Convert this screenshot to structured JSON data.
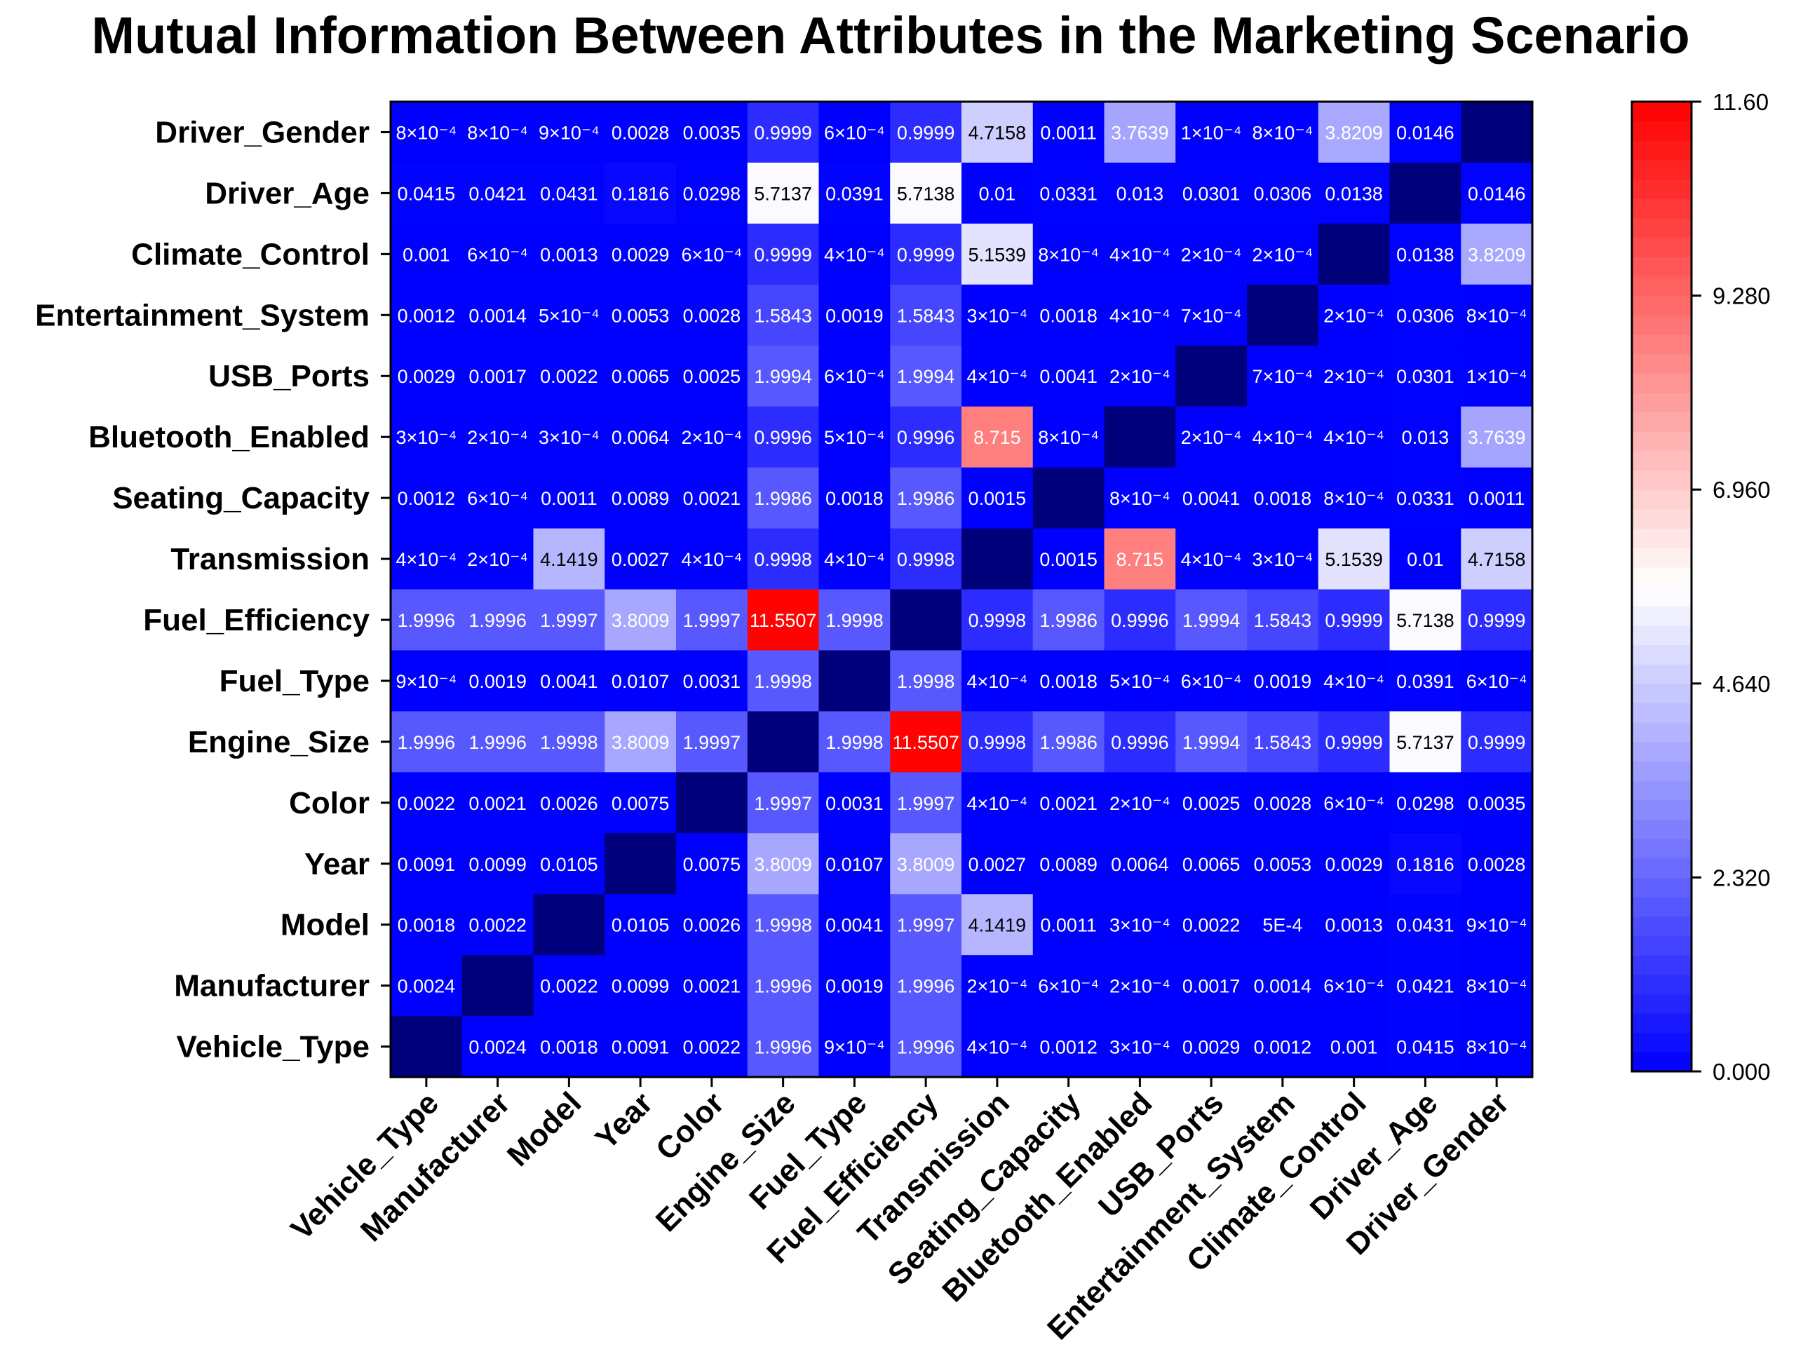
{
  "chart_data": {
    "type": "heatmap",
    "title": "Mutual Information Between Attributes in the Marketing Scenario",
    "xlabel": "",
    "ylabel": "",
    "x_categories": [
      "Vehicle_Type",
      "Manufacturer",
      "Model",
      "Year",
      "Color",
      "Engine_Size",
      "Fuel_Type",
      "Fuel_Efficiency",
      "Transmission",
      "Seating_Capacity",
      "Bluetooth_Enabled",
      "USB_Ports",
      "Entertainment_System",
      "Climate_Control",
      "Driver_Age",
      "Driver_Gender"
    ],
    "y_categories_top_to_bottom": [
      "Driver_Gender",
      "Driver_Age",
      "Climate_Control",
      "Entertainment_System",
      "USB_Ports",
      "Bluetooth_Enabled",
      "Seating_Capacity",
      "Transmission",
      "Fuel_Efficiency",
      "Fuel_Type",
      "Engine_Size",
      "Color",
      "Year",
      "Model",
      "Manufacturer",
      "Vehicle_Type"
    ],
    "values": [
      [
        0.0008,
        0.0008,
        0.0009,
        0.0028,
        0.0035,
        0.9999,
        0.0006,
        0.9999,
        4.7158,
        0.0011,
        3.7639,
        0.0001,
        0.0008,
        3.8209,
        0.0146,
        0
      ],
      [
        0.0415,
        0.0421,
        0.0431,
        0.1816,
        0.0298,
        5.7137,
        0.0391,
        5.7138,
        0.01,
        0.0331,
        0.013,
        0.0301,
        0.0306,
        0.0138,
        0,
        0.0146
      ],
      [
        0.001,
        0.0006,
        0.0013,
        0.0029,
        0.0006,
        0.9999,
        0.0004,
        0.9999,
        5.1539,
        0.0008,
        0.0004,
        0.0002,
        0.0002,
        0,
        0.0138,
        3.8209
      ],
      [
        0.0012,
        0.0014,
        0.0005,
        0.0053,
        0.0028,
        1.5843,
        0.0019,
        1.5843,
        0.0003,
        0.0018,
        0.0004,
        0.0007,
        0,
        0.0002,
        0.0306,
        0.0008
      ],
      [
        0.0029,
        0.0017,
        0.0022,
        0.0065,
        0.0025,
        1.9994,
        0.0006,
        1.9994,
        0.0004,
        0.0041,
        0.0002,
        0,
        0.0007,
        0.0002,
        0.0301,
        0.0001
      ],
      [
        0.0003,
        0.0002,
        0.0003,
        0.0064,
        0.0002,
        0.9996,
        0.0005,
        0.9996,
        8.715,
        0.0008,
        0,
        0.0002,
        0.0004,
        0.0004,
        0.013,
        3.7639
      ],
      [
        0.0012,
        0.0006,
        0.0011,
        0.0089,
        0.0021,
        1.9986,
        0.0018,
        1.9986,
        0.0015,
        0,
        0.0008,
        0.0041,
        0.0018,
        0.0008,
        0.0331,
        0.0011
      ],
      [
        0.0004,
        0.0002,
        4.1419,
        0.0027,
        0.0004,
        0.9998,
        0.0004,
        0.9998,
        0,
        0.0015,
        8.715,
        0.0004,
        0.0003,
        5.1539,
        0.01,
        4.7158
      ],
      [
        1.9996,
        1.9996,
        1.9997,
        3.8009,
        1.9997,
        11.5507,
        1.9998,
        0,
        0.9998,
        1.9986,
        0.9996,
        1.9994,
        1.5843,
        0.9999,
        5.7138,
        0.9999
      ],
      [
        0.0009,
        0.0019,
        0.0041,
        0.0107,
        0.0031,
        1.9998,
        0,
        1.9998,
        0.0004,
        0.0018,
        0.0005,
        0.0006,
        0.0019,
        0.0004,
        0.0391,
        0.0006
      ],
      [
        1.9996,
        1.9996,
        1.9998,
        3.8009,
        1.9997,
        0,
        1.9998,
        11.5507,
        0.9998,
        1.9986,
        0.9996,
        1.9994,
        1.5843,
        0.9999,
        5.7137,
        0.9999
      ],
      [
        0.0022,
        0.0021,
        0.0026,
        0.0075,
        0,
        1.9997,
        0.0031,
        1.9997,
        0.0004,
        0.0021,
        0.0002,
        0.0025,
        0.0028,
        0.0006,
        0.0298,
        0.0035
      ],
      [
        0.0091,
        0.0099,
        0.0105,
        0,
        0.0075,
        3.8009,
        0.0107,
        3.8009,
        0.0027,
        0.0089,
        0.0064,
        0.0065,
        0.0053,
        0.0029,
        0.1816,
        0.0028
      ],
      [
        0.0018,
        0.0022,
        0,
        0.0105,
        0.0026,
        1.9998,
        0.0041,
        1.9997,
        4.1419,
        0.0011,
        0.0003,
        0.0022,
        0.0005,
        0.0013,
        0.0431,
        0.0009
      ],
      [
        0.0024,
        0,
        0.0022,
        0.0099,
        0.0021,
        1.9996,
        0.0019,
        1.9996,
        0.0002,
        0.0006,
        0.0002,
        0.0017,
        0.0014,
        0.0006,
        0.0421,
        0.0008
      ],
      [
        0,
        0.0024,
        0.0018,
        0.0091,
        0.0022,
        1.9996,
        0.0009,
        1.9996,
        0.0004,
        0.0012,
        0.0003,
        0.0029,
        0.0012,
        0.001,
        0.0415,
        0.0008
      ]
    ],
    "labels": [
      [
        "8×10⁻⁴",
        "8×10⁻⁴",
        "9×10⁻⁴",
        "0.0028",
        "0.0035",
        "0.9999",
        "6×10⁻⁴",
        "0.9999",
        "4.7158",
        "0.0011",
        "3.7639",
        "1×10⁻⁴",
        "8×10⁻⁴",
        "3.8209",
        "0.0146",
        ""
      ],
      [
        "0.0415",
        "0.0421",
        "0.0431",
        "0.1816",
        "0.0298",
        "5.7137",
        "0.0391",
        "5.7138",
        "0.01",
        "0.0331",
        "0.013",
        "0.0301",
        "0.0306",
        "0.0138",
        "",
        "0.0146"
      ],
      [
        "0.001",
        "6×10⁻⁴",
        "0.0013",
        "0.0029",
        "6×10⁻⁴",
        "0.9999",
        "4×10⁻⁴",
        "0.9999",
        "5.1539",
        "8×10⁻⁴",
        "4×10⁻⁴",
        "2×10⁻⁴",
        "2×10⁻⁴",
        "",
        "0.0138",
        "3.8209"
      ],
      [
        "0.0012",
        "0.0014",
        "5×10⁻⁴",
        "0.0053",
        "0.0028",
        "1.5843",
        "0.0019",
        "1.5843",
        "3×10⁻⁴",
        "0.0018",
        "4×10⁻⁴",
        "7×10⁻⁴",
        "",
        "2×10⁻⁴",
        "0.0306",
        "8×10⁻⁴"
      ],
      [
        "0.0029",
        "0.0017",
        "0.0022",
        "0.0065",
        "0.0025",
        "1.9994",
        "6×10⁻⁴",
        "1.9994",
        "4×10⁻⁴",
        "0.0041",
        "2×10⁻⁴",
        "",
        "7×10⁻⁴",
        "2×10⁻⁴",
        "0.0301",
        "1×10⁻⁴"
      ],
      [
        "3×10⁻⁴",
        "2×10⁻⁴",
        "3×10⁻⁴",
        "0.0064",
        "2×10⁻⁴",
        "0.9996",
        "5×10⁻⁴",
        "0.9996",
        "8.715",
        "8×10⁻⁴",
        "",
        "2×10⁻⁴",
        "4×10⁻⁴",
        "4×10⁻⁴",
        "0.013",
        "3.7639"
      ],
      [
        "0.0012",
        "6×10⁻⁴",
        "0.0011",
        "0.0089",
        "0.0021",
        "1.9986",
        "0.0018",
        "1.9986",
        "0.0015",
        "",
        "8×10⁻⁴",
        "0.0041",
        "0.0018",
        "8×10⁻⁴",
        "0.0331",
        "0.0011"
      ],
      [
        "4×10⁻⁴",
        "2×10⁻⁴",
        "4.1419",
        "0.0027",
        "4×10⁻⁴",
        "0.9998",
        "4×10⁻⁴",
        "0.9998",
        "",
        "0.0015",
        "8.715",
        "4×10⁻⁴",
        "3×10⁻⁴",
        "5.1539",
        "0.01",
        "4.7158"
      ],
      [
        "1.9996",
        "1.9996",
        "1.9997",
        "3.8009",
        "1.9997",
        "11.5507",
        "1.9998",
        "",
        "0.9998",
        "1.9986",
        "0.9996",
        "1.9994",
        "1.5843",
        "0.9999",
        "5.7138",
        "0.9999"
      ],
      [
        "9×10⁻⁴",
        "0.0019",
        "0.0041",
        "0.0107",
        "0.0031",
        "1.9998",
        "",
        "1.9998",
        "4×10⁻⁴",
        "0.0018",
        "5×10⁻⁴",
        "6×10⁻⁴",
        "0.0019",
        "4×10⁻⁴",
        "0.0391",
        "6×10⁻⁴"
      ],
      [
        "1.9996",
        "1.9996",
        "1.9998",
        "3.8009",
        "1.9997",
        "",
        "1.9998",
        "11.5507",
        "0.9998",
        "1.9986",
        "0.9996",
        "1.9994",
        "1.5843",
        "0.9999",
        "5.7137",
        "0.9999"
      ],
      [
        "0.0022",
        "0.0021",
        "0.0026",
        "0.0075",
        "",
        "1.9997",
        "0.0031",
        "1.9997",
        "4×10⁻⁴",
        "0.0021",
        "2×10⁻⁴",
        "0.0025",
        "0.0028",
        "6×10⁻⁴",
        "0.0298",
        "0.0035"
      ],
      [
        "0.0091",
        "0.0099",
        "0.0105",
        "",
        "0.0075",
        "3.8009",
        "0.0107",
        "3.8009",
        "0.0027",
        "0.0089",
        "0.0064",
        "0.0065",
        "0.0053",
        "0.0029",
        "0.1816",
        "0.0028"
      ],
      [
        "0.0018",
        "0.0022",
        "",
        "0.0105",
        "0.0026",
        "1.9998",
        "0.0041",
        "1.9997",
        "4.1419",
        "0.0011",
        "3×10⁻⁴",
        "0.0022",
        "5E-4",
        "0.0013",
        "0.0431",
        "9×10⁻⁴"
      ],
      [
        "0.0024",
        "",
        "0.0022",
        "0.0099",
        "0.0021",
        "1.9996",
        "0.0019",
        "1.9996",
        "2×10⁻⁴",
        "6×10⁻⁴",
        "2×10⁻⁴",
        "0.0017",
        "0.0014",
        "6×10⁻⁴",
        "0.0421",
        "8×10⁻⁴"
      ],
      [
        "",
        "0.0024",
        "0.0018",
        "0.0091",
        "0.0022",
        "1.9996",
        "9×10⁻⁴",
        "1.9996",
        "4×10⁻⁴",
        "0.0012",
        "3×10⁻⁴",
        "0.0029",
        "0.0012",
        "0.001",
        "0.0415",
        "8×10⁻⁴"
      ]
    ],
    "colorbar": {
      "min": 0,
      "max": 11.6,
      "ticks": [
        "0.000",
        "2.320",
        "4.640",
        "6.960",
        "9.280",
        "11.60"
      ],
      "colors": [
        "#0000ff",
        "#ffffff",
        "#ff0000"
      ],
      "diagonal_color": "#00007a"
    },
    "grid": false,
    "legend": "right colorbar"
  }
}
